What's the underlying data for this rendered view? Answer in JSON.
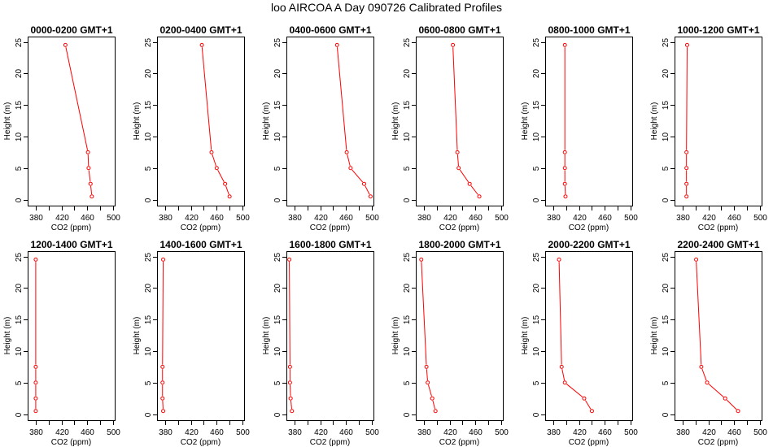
{
  "title": "loo AIRCOA A  Day 090726  Calibrated Profiles",
  "colors": {
    "series": "#ff0000",
    "axis": "#000000"
  },
  "chart_data": [
    {
      "type": "line",
      "title": "0000-0200 GMT+1",
      "xlabel": "CO2 (ppm)",
      "ylabel": "Height (m)",
      "xlim": [
        370,
        500
      ],
      "ylim": [
        0,
        25
      ],
      "xticks": [
        380,
        420,
        460,
        500
      ],
      "xticklabels": [
        "380",
        "420",
        "460",
        "500"
      ],
      "yticks": [
        0,
        5,
        10,
        15,
        20,
        25
      ],
      "yticklabels": [
        "0",
        "5",
        "10",
        "15",
        "20",
        "25"
      ],
      "series": [
        {
          "x": [
            426,
            461,
            462,
            465,
            467
          ],
          "y": [
            24.5,
            7.5,
            5,
            2.5,
            0.5
          ]
        }
      ]
    },
    {
      "type": "line",
      "title": "0200-0400 GMT+1",
      "xlabel": "CO2 (ppm)",
      "ylabel": "Height (m)",
      "xlim": [
        370,
        500
      ],
      "ylim": [
        0,
        25
      ],
      "xticks": [
        380,
        420,
        460,
        500
      ],
      "xticklabels": [
        "380",
        "420",
        "460",
        "500"
      ],
      "yticks": [
        0,
        5,
        10,
        15,
        20,
        25
      ],
      "yticklabels": [
        "0",
        "5",
        "10",
        "15",
        "20",
        "25"
      ],
      "series": [
        {
          "x": [
            437,
            452,
            460,
            473,
            480
          ],
          "y": [
            24.5,
            7.5,
            5,
            2.5,
            0.5
          ]
        }
      ]
    },
    {
      "type": "line",
      "title": "0400-0600 GMT+1",
      "xlabel": "CO2 (ppm)",
      "ylabel": "Height (m)",
      "xlim": [
        370,
        500
      ],
      "ylim": [
        0,
        25
      ],
      "xticks": [
        380,
        420,
        460,
        500
      ],
      "xticklabels": [
        "380",
        "420",
        "460",
        "500"
      ],
      "yticks": [
        0,
        5,
        10,
        15,
        20,
        25
      ],
      "yticklabels": [
        "0",
        "5",
        "10",
        "15",
        "20",
        "25"
      ],
      "series": [
        {
          "x": [
            446,
            461,
            467,
            488,
            498
          ],
          "y": [
            24.5,
            7.5,
            5,
            2.5,
            0.5
          ]
        }
      ]
    },
    {
      "type": "line",
      "title": "0600-0800 GMT+1",
      "xlabel": "CO2 (ppm)",
      "ylabel": "Height (m)",
      "xlim": [
        370,
        500
      ],
      "ylim": [
        0,
        25
      ],
      "xticks": [
        380,
        420,
        460,
        500
      ],
      "xticklabels": [
        "380",
        "420",
        "460",
        "500"
      ],
      "yticks": [
        0,
        5,
        10,
        15,
        20,
        25
      ],
      "yticklabels": [
        "0",
        "5",
        "10",
        "15",
        "20",
        "25"
      ],
      "series": [
        {
          "x": [
            425,
            432,
            434,
            451,
            466
          ],
          "y": [
            24.5,
            7.5,
            5,
            2.5,
            0.5
          ]
        }
      ]
    },
    {
      "type": "line",
      "title": "0800-1000 GMT+1",
      "xlabel": "CO2 (ppm)",
      "ylabel": "Height (m)",
      "xlim": [
        370,
        500
      ],
      "ylim": [
        0,
        25
      ],
      "xticks": [
        380,
        420,
        460,
        500
      ],
      "xticklabels": [
        "380",
        "420",
        "460",
        "500"
      ],
      "yticks": [
        0,
        5,
        10,
        15,
        20,
        25
      ],
      "yticklabels": [
        "0",
        "5",
        "10",
        "15",
        "20",
        "25"
      ],
      "series": [
        {
          "x": [
            398,
            398,
            398,
            398,
            399
          ],
          "y": [
            24.5,
            7.5,
            5,
            2.5,
            0.5
          ]
        }
      ]
    },
    {
      "type": "line",
      "title": "1000-1200 GMT+1",
      "xlabel": "CO2 (ppm)",
      "ylabel": "Height (m)",
      "xlim": [
        370,
        500
      ],
      "ylim": [
        0,
        25
      ],
      "xticks": [
        380,
        420,
        460,
        500
      ],
      "xticklabels": [
        "380",
        "420",
        "460",
        "500"
      ],
      "yticks": [
        0,
        5,
        10,
        15,
        20,
        25
      ],
      "yticklabels": [
        "0",
        "5",
        "10",
        "15",
        "20",
        "25"
      ],
      "series": [
        {
          "x": [
            387,
            386,
            386,
            386,
            386
          ],
          "y": [
            24.5,
            7.5,
            5,
            2.5,
            0.5
          ]
        }
      ]
    },
    {
      "type": "line",
      "title": "1200-1400 GMT+1",
      "xlabel": "CO2 (ppm)",
      "ylabel": "Height (m)",
      "xlim": [
        370,
        500
      ],
      "ylim": [
        0,
        25
      ],
      "xticks": [
        380,
        420,
        460,
        500
      ],
      "xticklabels": [
        "380",
        "420",
        "460",
        "500"
      ],
      "yticks": [
        0,
        5,
        10,
        15,
        20,
        25
      ],
      "yticklabels": [
        "0",
        "5",
        "10",
        "15",
        "20",
        "25"
      ],
      "series": [
        {
          "x": [
            380,
            380,
            380,
            380,
            380
          ],
          "y": [
            24.5,
            7.5,
            5,
            2.5,
            0.5
          ]
        }
      ]
    },
    {
      "type": "line",
      "title": "1400-1600 GMT+1",
      "xlabel": "CO2 (ppm)",
      "ylabel": "Height (m)",
      "xlim": [
        370,
        500
      ],
      "ylim": [
        0,
        25
      ],
      "xticks": [
        380,
        420,
        460,
        500
      ],
      "xticklabels": [
        "380",
        "420",
        "460",
        "500"
      ],
      "yticks": [
        0,
        5,
        10,
        15,
        20,
        25
      ],
      "yticklabels": [
        "0",
        "5",
        "10",
        "15",
        "20",
        "25"
      ],
      "series": [
        {
          "x": [
            377,
            376,
            376,
            376,
            377
          ],
          "y": [
            24.5,
            7.5,
            5,
            2.5,
            0.5
          ]
        }
      ]
    },
    {
      "type": "line",
      "title": "1600-1800 GMT+1",
      "xlabel": "CO2 (ppm)",
      "ylabel": "Height (m)",
      "xlim": [
        370,
        500
      ],
      "ylim": [
        0,
        25
      ],
      "xticks": [
        380,
        420,
        460,
        500
      ],
      "xticklabels": [
        "380",
        "420",
        "460",
        "500"
      ],
      "yticks": [
        0,
        5,
        10,
        15,
        20,
        25
      ],
      "yticklabels": [
        "0",
        "5",
        "10",
        "15",
        "20",
        "25"
      ],
      "series": [
        {
          "x": [
            372,
            373,
            373,
            374,
            376
          ],
          "y": [
            24.5,
            7.5,
            5,
            2.5,
            0.5
          ]
        }
      ]
    },
    {
      "type": "line",
      "title": "1800-2000 GMT+1",
      "xlabel": "CO2 (ppm)",
      "ylabel": "Height (m)",
      "xlim": [
        370,
        500
      ],
      "ylim": [
        0,
        25
      ],
      "xticks": [
        380,
        420,
        460,
        500
      ],
      "xticklabels": [
        "380",
        "420",
        "460",
        "500"
      ],
      "yticks": [
        0,
        5,
        10,
        15,
        20,
        25
      ],
      "yticklabels": [
        "0",
        "5",
        "10",
        "15",
        "20",
        "25"
      ],
      "series": [
        {
          "x": [
            376,
            384,
            386,
            393,
            398
          ],
          "y": [
            24.5,
            7.5,
            5,
            2.5,
            0.5
          ]
        }
      ]
    },
    {
      "type": "line",
      "title": "2000-2200 GMT+1",
      "xlabel": "CO2 (ppm)",
      "ylabel": "Height (m)",
      "xlim": [
        370,
        500
      ],
      "ylim": [
        0,
        25
      ],
      "xticks": [
        380,
        420,
        460,
        500
      ],
      "xticklabels": [
        "380",
        "420",
        "460",
        "500"
      ],
      "yticks": [
        0,
        5,
        10,
        15,
        20,
        25
      ],
      "yticklabels": [
        "0",
        "5",
        "10",
        "15",
        "20",
        "25"
      ],
      "series": [
        {
          "x": [
            389,
            393,
            398,
            428,
            440
          ],
          "y": [
            24.5,
            7.5,
            5,
            2.5,
            0.5
          ]
        }
      ]
    },
    {
      "type": "line",
      "title": "2200-2400 GMT+1",
      "xlabel": "CO2 (ppm)",
      "ylabel": "Height (m)",
      "xlim": [
        370,
        500
      ],
      "ylim": [
        0,
        25
      ],
      "xticks": [
        380,
        420,
        460,
        500
      ],
      "xticklabels": [
        "380",
        "420",
        "460",
        "500"
      ],
      "yticks": [
        0,
        5,
        10,
        15,
        20,
        25
      ],
      "yticklabels": [
        "0",
        "5",
        "10",
        "15",
        "20",
        "25"
      ],
      "series": [
        {
          "x": [
            401,
            409,
            418,
            446,
            466
          ],
          "y": [
            24.5,
            7.5,
            5,
            2.5,
            0.5
          ]
        }
      ]
    }
  ]
}
